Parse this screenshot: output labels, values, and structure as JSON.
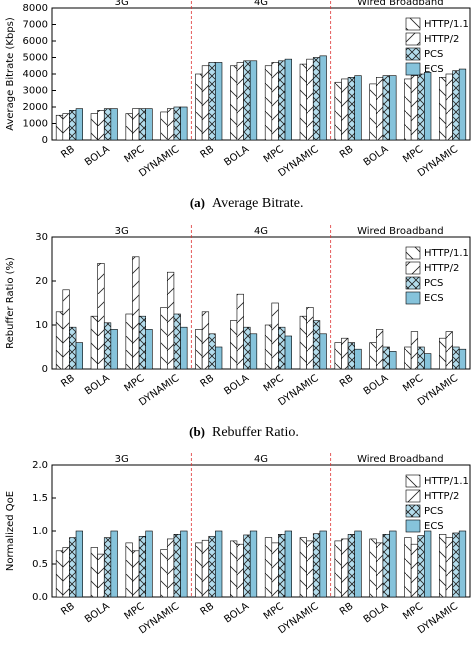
{
  "chart_data": [
    {
      "type": "bar",
      "caption_label": "(a)",
      "caption": "Average Bitrate.",
      "y_label": "Average Bitrate (Kbps)",
      "sections": [
        "3G",
        "4G",
        "Wired Broadband"
      ],
      "categories": [
        "RB",
        "BOLA",
        "MPC",
        "DYNAMIC",
        "RB",
        "BOLA",
        "MPC",
        "DYNAMIC",
        "RB",
        "BOLA",
        "MPC",
        "DYNAMIC"
      ],
      "ylim": [
        0,
        8000
      ],
      "yticks": [
        0,
        1000,
        2000,
        3000,
        4000,
        5000,
        6000,
        7000,
        8000
      ],
      "legend": "upper right",
      "series": [
        {
          "name": "HTTP/1.1",
          "color": "#ffffff",
          "hatch": "\\",
          "values": [
            1500,
            1600,
            1600,
            1700,
            4000,
            4500,
            4500,
            4600,
            3500,
            3400,
            3700,
            3800
          ]
        },
        {
          "name": "HTTP/2",
          "color": "#ffffff",
          "hatch": "/",
          "values": [
            1600,
            1800,
            1900,
            1900,
            4500,
            4700,
            4700,
            4900,
            3700,
            3800,
            3900,
            4000
          ]
        },
        {
          "name": "PCS",
          "color": "#b3dcec",
          "hatch": "x",
          "values": [
            1800,
            1900,
            1900,
            2000,
            4700,
            4800,
            4800,
            5000,
            3800,
            3900,
            4000,
            4200
          ]
        },
        {
          "name": "ECS",
          "color": "#86c3db",
          "hatch": "",
          "values": [
            1900,
            1900,
            1900,
            2000,
            4700,
            4800,
            4900,
            5100,
            3900,
            3900,
            4100,
            4300
          ]
        }
      ]
    },
    {
      "type": "bar",
      "caption_label": "(b)",
      "caption": "Rebuffer Ratio.",
      "y_label": "Rebuffer Ratio (%)",
      "sections": [
        "3G",
        "4G",
        "Wired Broadband"
      ],
      "categories": [
        "RB",
        "BOLA",
        "MPC",
        "DYNAMIC",
        "RB",
        "BOLA",
        "MPC",
        "DYNAMIC",
        "RB",
        "BOLA",
        "MPC",
        "DYNAMIC"
      ],
      "ylim": [
        0,
        30
      ],
      "yticks": [
        0,
        10,
        20,
        30
      ],
      "legend": "upper right",
      "series": [
        {
          "name": "HTTP/1.1",
          "color": "#ffffff",
          "hatch": "\\",
          "values": [
            13,
            12,
            12.5,
            14,
            9,
            11,
            10,
            12,
            6,
            6,
            5,
            7
          ]
        },
        {
          "name": "HTTP/2",
          "color": "#ffffff",
          "hatch": "/",
          "values": [
            18,
            24,
            25.5,
            22,
            13,
            17,
            15,
            14,
            7,
            9,
            8.5,
            8.5
          ]
        },
        {
          "name": "PCS",
          "color": "#b3dcec",
          "hatch": "x",
          "values": [
            9.5,
            10.5,
            12,
            12.5,
            8,
            9.5,
            9.5,
            11,
            6,
            5,
            5,
            5
          ]
        },
        {
          "name": "ECS",
          "color": "#86c3db",
          "hatch": "",
          "values": [
            6,
            9,
            9,
            9.5,
            5,
            8,
            7.5,
            8,
            4.5,
            4,
            3.5,
            4.5
          ]
        }
      ]
    },
    {
      "type": "bar",
      "caption_label": "(c)",
      "caption": "Normalized QoE.",
      "y_label": "Normalized QoE",
      "sections": [
        "3G",
        "4G",
        "Wired Broadband"
      ],
      "categories": [
        "RB",
        "BOLA",
        "MPC",
        "DYNAMIC",
        "RB",
        "BOLA",
        "MPC",
        "DYNAMIC",
        "RB",
        "BOLA",
        "MPC",
        "DYNAMIC"
      ],
      "ylim": [
        0,
        2.0
      ],
      "yticks": [
        {
          "value": 0,
          "label": "0.0"
        },
        0.5,
        {
          "value": 1,
          "label": "1.0"
        },
        1.5,
        {
          "value": 2,
          "label": "2.0"
        }
      ],
      "legend": "upper right",
      "series": [
        {
          "name": "HTTP/1.1",
          "color": "#ffffff",
          "hatch": "\\",
          "values": [
            0.7,
            0.75,
            0.82,
            0.72,
            0.82,
            0.85,
            0.9,
            0.9,
            0.85,
            0.88,
            0.9,
            0.95
          ]
        },
        {
          "name": "HTTP/2",
          "color": "#ffffff",
          "hatch": "/",
          "values": [
            0.75,
            0.65,
            0.7,
            0.88,
            0.86,
            0.8,
            0.82,
            0.85,
            0.88,
            0.82,
            0.8,
            0.9
          ]
        },
        {
          "name": "PCS",
          "color": "#b3dcec",
          "hatch": "x",
          "values": [
            0.9,
            0.9,
            0.92,
            0.95,
            0.92,
            0.94,
            0.95,
            0.96,
            0.95,
            0.95,
            0.93,
            0.97
          ]
        },
        {
          "name": "ECS",
          "color": "#86c3db",
          "hatch": "",
          "values": [
            1.0,
            1.0,
            1.0,
            1.0,
            1.0,
            1.0,
            1.0,
            1.0,
            1.0,
            1.0,
            1.0,
            1.0
          ]
        }
      ]
    }
  ]
}
